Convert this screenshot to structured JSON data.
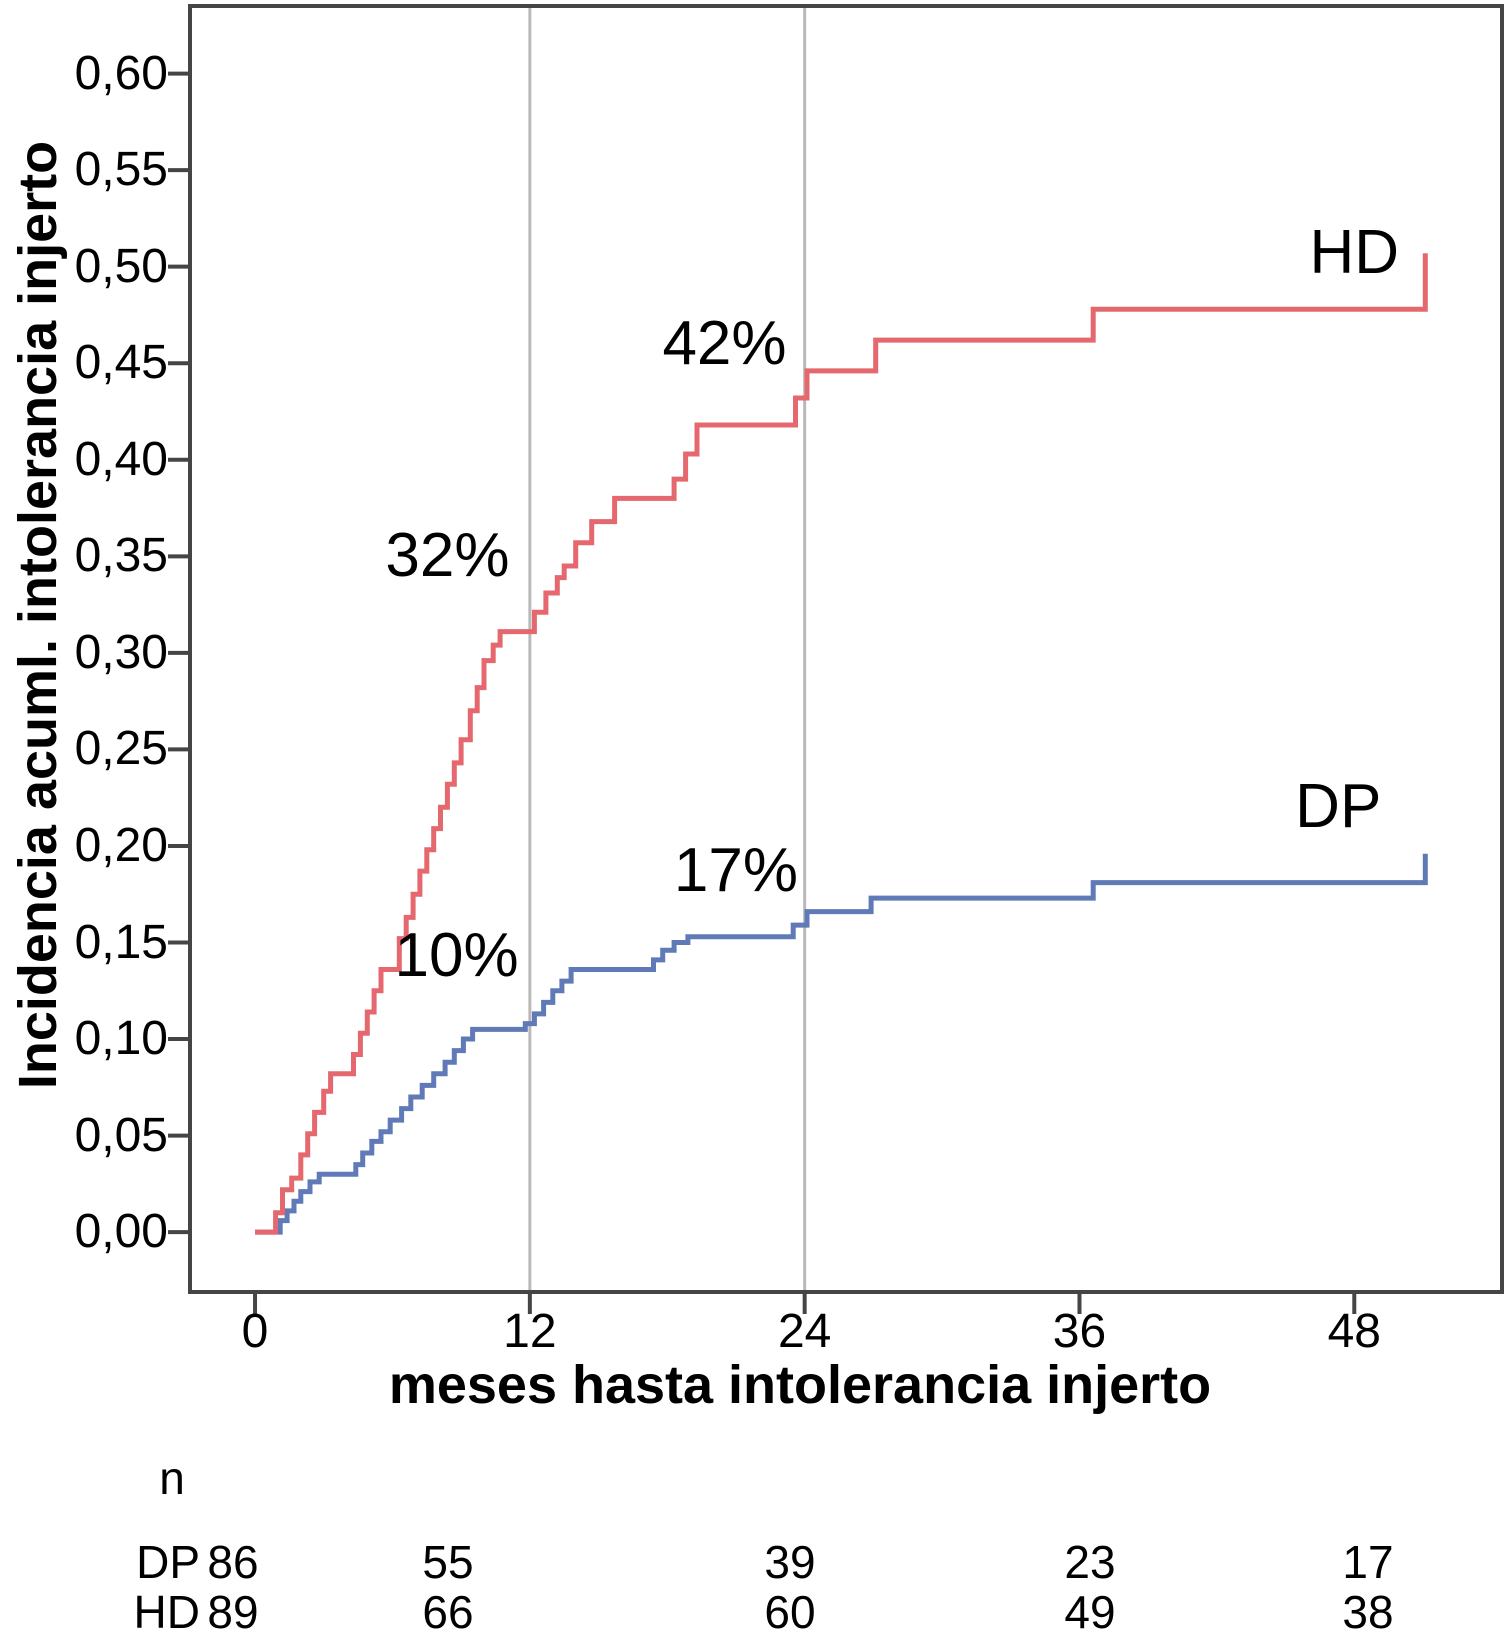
{
  "chart_data": {
    "type": "line",
    "step": true,
    "title": "",
    "xlabel": "meses hasta intolerancia injerto",
    "ylabel": "Incidencia acuml. intolerancia injerto",
    "xlim": [
      -2.84,
      54.45
    ],
    "ylim": [
      -0.031,
      0.635
    ],
    "grid_x": [
      12,
      24
    ],
    "x_ticks": [
      {
        "v": 0,
        "label": "0"
      },
      {
        "v": 12,
        "label": "12"
      },
      {
        "v": 24,
        "label": "24"
      },
      {
        "v": 36,
        "label": "36"
      },
      {
        "v": 48,
        "label": "48"
      }
    ],
    "y_ticks": [
      {
        "v": 0.0,
        "label": "0,00"
      },
      {
        "v": 0.05,
        "label": "0,05"
      },
      {
        "v": 0.1,
        "label": "0,10"
      },
      {
        "v": 0.15,
        "label": "0,15"
      },
      {
        "v": 0.2,
        "label": "0,20"
      },
      {
        "v": 0.25,
        "label": "0,25"
      },
      {
        "v": 0.3,
        "label": "0,30"
      },
      {
        "v": 0.35,
        "label": "0,35"
      },
      {
        "v": 0.4,
        "label": "0,40"
      },
      {
        "v": 0.45,
        "label": "0,45"
      },
      {
        "v": 0.5,
        "label": "0,50"
      },
      {
        "v": 0.55,
        "label": "0,55"
      },
      {
        "v": 0.6,
        "label": "0,60"
      }
    ],
    "series": [
      {
        "name": "HD",
        "color": "#e4686e",
        "points": [
          [
            0,
            0
          ],
          [
            0.9,
            0.01
          ],
          [
            1.2,
            0.022
          ],
          [
            1.6,
            0.028
          ],
          [
            2.0,
            0.04
          ],
          [
            2.3,
            0.051
          ],
          [
            2.6,
            0.062
          ],
          [
            3.0,
            0.073
          ],
          [
            3.3,
            0.082
          ],
          [
            4.3,
            0.092
          ],
          [
            4.6,
            0.103
          ],
          [
            4.9,
            0.114
          ],
          [
            5.2,
            0.125
          ],
          [
            5.5,
            0.136
          ],
          [
            6.3,
            0.152
          ],
          [
            6.6,
            0.163
          ],
          [
            6.9,
            0.175
          ],
          [
            7.2,
            0.187
          ],
          [
            7.5,
            0.198
          ],
          [
            7.8,
            0.209
          ],
          [
            8.1,
            0.22
          ],
          [
            8.4,
            0.232
          ],
          [
            8.7,
            0.243
          ],
          [
            9.0,
            0.255
          ],
          [
            9.4,
            0.27
          ],
          [
            9.7,
            0.282
          ],
          [
            10.0,
            0.296
          ],
          [
            10.4,
            0.304
          ],
          [
            10.7,
            0.311
          ],
          [
            12.2,
            0.321
          ],
          [
            12.7,
            0.331
          ],
          [
            13.2,
            0.339
          ],
          [
            13.5,
            0.345
          ],
          [
            14.0,
            0.357
          ],
          [
            14.7,
            0.368
          ],
          [
            15.7,
            0.38
          ],
          [
            18.3,
            0.39
          ],
          [
            18.8,
            0.403
          ],
          [
            19.3,
            0.418
          ],
          [
            23.6,
            0.432
          ],
          [
            24.1,
            0.446
          ],
          [
            27.1,
            0.462
          ],
          [
            36.6,
            0.478
          ],
          [
            51.1,
            0.507
          ]
        ]
      },
      {
        "name": "DP",
        "color": "#5f7ab7",
        "points": [
          [
            0,
            0
          ],
          [
            1.1,
            0.006
          ],
          [
            1.4,
            0.011
          ],
          [
            1.7,
            0.016
          ],
          [
            2.0,
            0.021
          ],
          [
            2.4,
            0.026
          ],
          [
            2.8,
            0.03
          ],
          [
            4.4,
            0.035
          ],
          [
            4.7,
            0.041
          ],
          [
            5.1,
            0.047
          ],
          [
            5.5,
            0.052
          ],
          [
            5.9,
            0.058
          ],
          [
            6.4,
            0.064
          ],
          [
            6.8,
            0.07
          ],
          [
            7.3,
            0.076
          ],
          [
            7.8,
            0.082
          ],
          [
            8.3,
            0.088
          ],
          [
            8.7,
            0.094
          ],
          [
            9.1,
            0.1
          ],
          [
            9.5,
            0.105
          ],
          [
            11.8,
            0.108
          ],
          [
            12.2,
            0.113
          ],
          [
            12.6,
            0.119
          ],
          [
            13.0,
            0.125
          ],
          [
            13.4,
            0.13
          ],
          [
            13.8,
            0.136
          ],
          [
            17.4,
            0.141
          ],
          [
            17.8,
            0.146
          ],
          [
            18.3,
            0.15
          ],
          [
            18.9,
            0.153
          ],
          [
            23.5,
            0.159
          ],
          [
            24.1,
            0.166
          ],
          [
            26.9,
            0.173
          ],
          [
            36.6,
            0.181
          ],
          [
            51.1,
            0.196
          ]
        ]
      }
    ],
    "annotations": [
      {
        "text": "32%",
        "x": 8.4,
        "y": 0.35
      },
      {
        "text": "42%",
        "x": 20.5,
        "y": 0.46
      },
      {
        "text": "17%",
        "x": 21.0,
        "y": 0.187
      },
      {
        "text": "10%",
        "x": 8.8,
        "y": 0.143
      }
    ],
    "series_labels": [
      {
        "text": "HD",
        "x": 48.0,
        "y": 0.507
      },
      {
        "text": "DP",
        "x": 47.3,
        "y": 0.22
      }
    ],
    "colors": {
      "grid": "#b9b9b9",
      "axis": "#454545",
      "text": "#000000"
    }
  },
  "risk_table": {
    "header": "n",
    "rows": [
      {
        "label": "DP",
        "counts": [
          "86",
          "55",
          "39",
          "23",
          "17"
        ]
      },
      {
        "label": "HD",
        "counts": [
          "89",
          "66",
          "60",
          "49",
          "38"
        ]
      }
    ]
  }
}
